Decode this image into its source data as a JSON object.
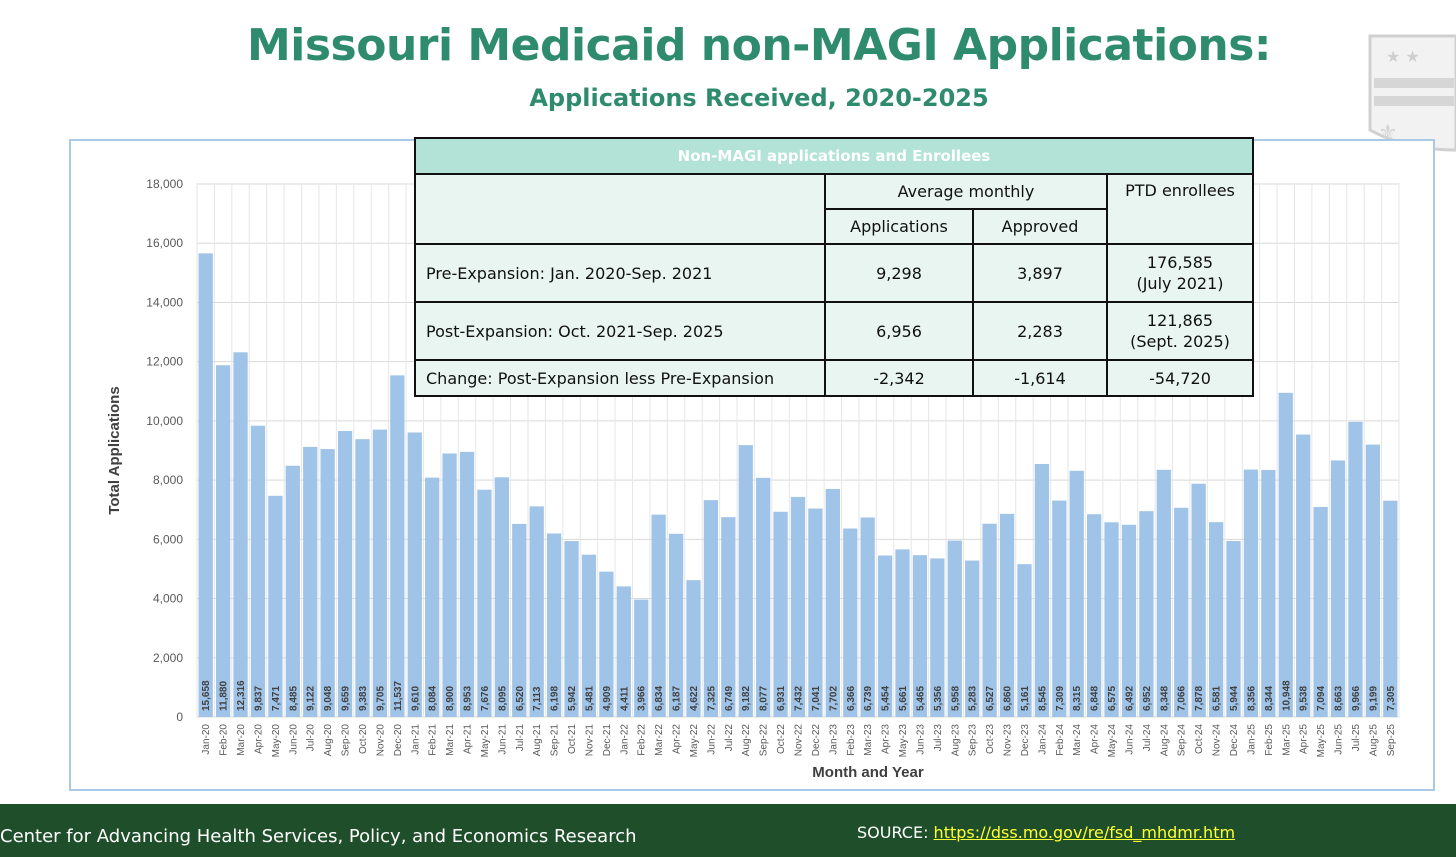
{
  "header": {
    "title": "Missouri Medicaid non-MAGI Applications:",
    "subtitle": "Applications Received, 2020-2025"
  },
  "table": {
    "caption": "Non-MAGI applications and Enrollees",
    "group_header": "Average monthly",
    "col_ptd": "PTD enrollees",
    "col_applications": "Applications",
    "col_approved": "Approved",
    "rows": [
      {
        "label": "Pre-Expansion:  Jan. 2020-Sep. 2021",
        "applications": "9,298",
        "approved": "3,897",
        "ptd": "176,585",
        "ptd_note": "(July 2021)"
      },
      {
        "label": "Post-Expansion:  Oct. 2021-Sep. 2025",
        "applications": "6,956",
        "approved": "2,283",
        "ptd": "121,865",
        "ptd_note": "(Sept. 2025)"
      },
      {
        "label": "Change: Post-Expansion less Pre-Expansion",
        "applications": "-2,342",
        "approved": "-1,614",
        "ptd": "-54,720",
        "ptd_note": ""
      }
    ]
  },
  "chart_data": {
    "type": "bar",
    "title": "",
    "xlabel": "Month and Year",
    "ylabel": "Total Applications",
    "ylim": [
      0,
      18000
    ],
    "yticks": [
      0,
      2000,
      4000,
      6000,
      8000,
      10000,
      12000,
      14000,
      16000,
      18000
    ],
    "ytick_labels": [
      "0",
      "2,000",
      "4,000",
      "6,000",
      "8,000",
      "10,000",
      "12,000",
      "14,000",
      "16,000",
      "18,000"
    ],
    "bar_color": "#a0c4e8",
    "categories": [
      "Jan-20",
      "Feb-20",
      "Mar-20",
      "Apr-20",
      "May-20",
      "Jun-20",
      "Jul-20",
      "Aug-20",
      "Sep-20",
      "Oct-20",
      "Nov-20",
      "Dec-20",
      "Jan-21",
      "Feb-21",
      "Mar-21",
      "Apr-21",
      "May-21",
      "Jun-21",
      "Jul-21",
      "Aug-21",
      "Sep-21",
      "Oct-21",
      "Nov-21",
      "Dec-21",
      "Jan-22",
      "Feb-22",
      "Mar-22",
      "Apr-22",
      "May-22",
      "Jun-22",
      "Jul-22",
      "Aug-22",
      "Sep-22",
      "Oct-22",
      "Nov-22",
      "Dec-22",
      "Jan-23",
      "Feb-23",
      "Mar-23",
      "Apr-23",
      "May-23",
      "Jun-23",
      "Jul-23",
      "Aug-23",
      "Sep-23",
      "Oct-23",
      "Nov-23",
      "Dec-23",
      "Jan-24",
      "Feb-24",
      "Mar-24",
      "Apr-24",
      "May-24",
      "Jun-24",
      "Jul-24",
      "Aug-24",
      "Sep-24",
      "Oct-24",
      "Nov-24",
      "Dec-24",
      "Jan-25",
      "Feb-25",
      "Mar-25",
      "Apr-25",
      "May-25",
      "Jun-25",
      "Jul-25",
      "Aug-25",
      "Sep-25"
    ],
    "values": [
      15658,
      11880,
      12316,
      9837,
      7471,
      8485,
      9122,
      9048,
      9659,
      9383,
      9705,
      11537,
      9610,
      8084,
      8900,
      8953,
      7676,
      8095,
      6520,
      7113,
      6198,
      5942,
      5481,
      4909,
      4411,
      3966,
      6834,
      6187,
      4622,
      7325,
      6749,
      9182,
      8077,
      6931,
      7432,
      7041,
      7702,
      6366,
      6739,
      5454,
      5661,
      5465,
      5356,
      5958,
      5283,
      6527,
      6860,
      5161,
      8545,
      7309,
      8315,
      6848,
      6575,
      6492,
      6952,
      8348,
      7066,
      7878,
      6581,
      5944,
      8356,
      8344,
      10948,
      9538,
      7094,
      8663,
      9966,
      9199,
      7305
    ],
    "value_labels": [
      "15,658",
      "11,880",
      "12,316",
      "9,837",
      "7,471",
      "8,485",
      "9,122",
      "9,048",
      "9,659",
      "9,383",
      "9,705",
      "11,537",
      "9,610",
      "8,084",
      "8,900",
      "8,953",
      "7,676",
      "8,095",
      "6,520",
      "7,113",
      "6,198",
      "5,942",
      "5,481",
      "4,909",
      "4,411",
      "3,966",
      "6,834",
      "6,187",
      "4,622",
      "7,325",
      "6,749",
      "9,182",
      "8,077",
      "6,931",
      "7,432",
      "7,041",
      "7,702",
      "6,366",
      "6,739",
      "5,454",
      "5,661",
      "5,465",
      "5,356",
      "5,958",
      "5,283",
      "6,527",
      "6,860",
      "5,161",
      "8,545",
      "7,309",
      "8,315",
      "6,848",
      "6,575",
      "6,492",
      "6,952",
      "8,348",
      "7,066",
      "7,878",
      "6,581",
      "5,944",
      "8,356",
      "8,344",
      "10,948",
      "9,538",
      "7,094",
      "8,663",
      "9,966",
      "9,199",
      "7,305"
    ]
  },
  "footer": {
    "org": "Center for Advancing Health Services, Policy, and Economics Research",
    "source_label": "SOURCE: ",
    "source_link": "https://dss.mo.gov/re/fsd_mhdmr.htm"
  }
}
